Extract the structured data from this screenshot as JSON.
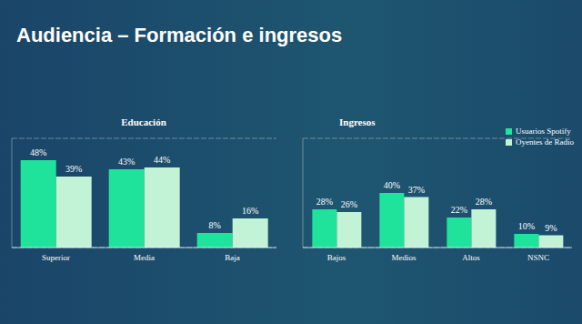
{
  "title": "Audiencia – Formación e ingresos",
  "chart_data": [
    {
      "type": "bar",
      "title": "Educación",
      "categories": [
        "Superior",
        "Media",
        "Baja"
      ],
      "series": [
        {
          "name": "Usuarios Spotify",
          "color": "#1fe39b",
          "values": [
            48,
            43,
            8
          ],
          "value_labels": [
            "48%",
            "43%",
            "8%"
          ]
        },
        {
          "name": "Oyentes de Radio",
          "color": "#c3f3d6",
          "values": [
            39,
            44,
            16
          ],
          "value_labels": [
            "39%",
            "44%",
            "16%"
          ]
        }
      ],
      "ylim": [
        0,
        60
      ],
      "yticks": [
        0,
        10,
        20,
        30,
        40,
        50,
        60
      ],
      "grid": true,
      "data_labels": true,
      "tick_labels": "x"
    },
    {
      "type": "bar",
      "title": "Ingresos",
      "categories": [
        "Bajos",
        "Medios",
        "Altos",
        "NSNC"
      ],
      "series": [
        {
          "name": "Usuarios Spotify",
          "color": "#1fe39b",
          "values": [
            28,
            40,
            22,
            10
          ],
          "value_labels": [
            "28%",
            "40%",
            "22%",
            "10%"
          ]
        },
        {
          "name": "Oyentes de Radio",
          "color": "#c3f3d6",
          "values": [
            26,
            37,
            28,
            9
          ],
          "value_labels": [
            "26%",
            "37%",
            "28%",
            "9%"
          ]
        }
      ],
      "ylim": [
        0,
        80
      ],
      "yticks": [
        0,
        10,
        20,
        30,
        40,
        50,
        60,
        70,
        80
      ],
      "grid": true,
      "data_labels": true,
      "tick_labels": "x",
      "legend": "upper right"
    }
  ]
}
